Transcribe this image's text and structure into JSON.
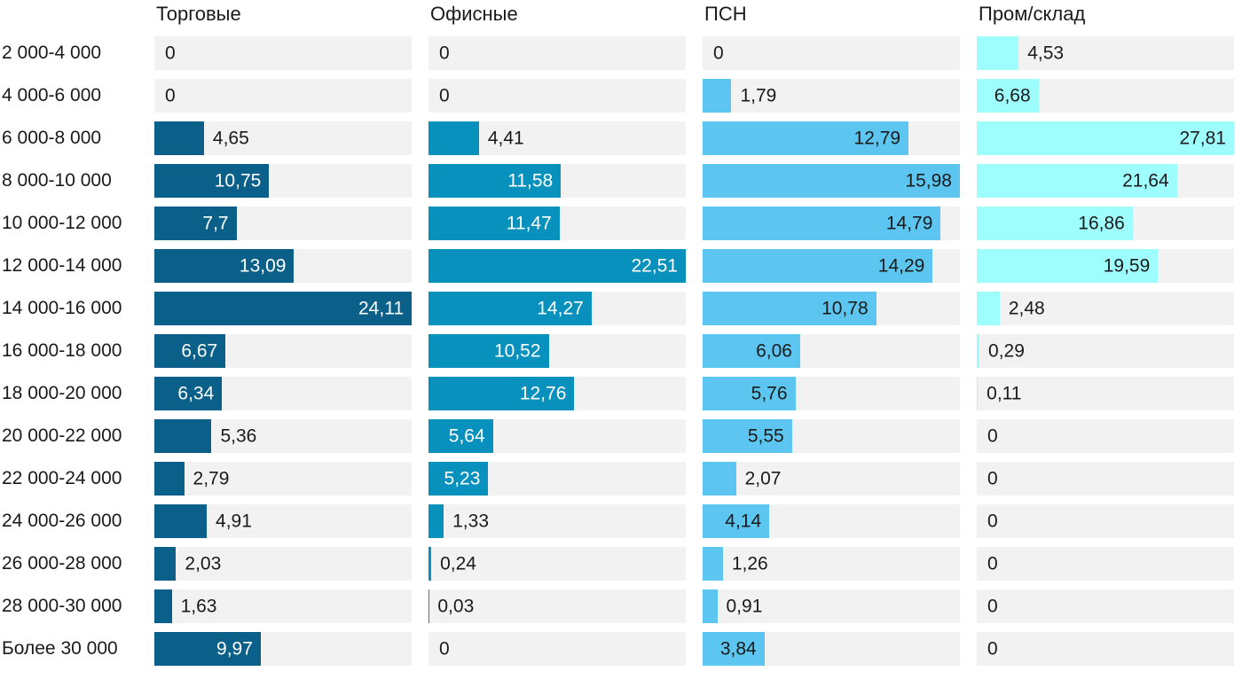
{
  "chart_data": {
    "type": "bar",
    "orientation": "horizontal",
    "title": "",
    "xlabel": "",
    "ylabel": "",
    "scaling": "per-series-max",
    "grid": false,
    "legend_position": "column-headers-top",
    "decimal_separator": ",",
    "categories": [
      "2 000-4 000",
      "4 000-6 000",
      "6 000-8 000",
      "8 000-10 000",
      "10 000-12 000",
      "12 000-14 000",
      "14 000-16 000",
      "16 000-18 000",
      "18 000-20 000",
      "20 000-22 000",
      "22 000-24 000",
      "24 000-26 000",
      "26 000-28 000",
      "28 000-30 000",
      "Более 30 000"
    ],
    "series": [
      {
        "name": "Торговые",
        "color": "#0b608a",
        "inside_text_color": "#ffffff",
        "values": [
          "0",
          "0",
          "4,65",
          "10,75",
          "7,7",
          "13,09",
          "24,11",
          "6,67",
          "6,34",
          "5,36",
          "2,79",
          "4,91",
          "2,03",
          "1,63",
          "9,97"
        ]
      },
      {
        "name": "Офисные",
        "color": "#0991bd",
        "inside_text_color": "#ffffff",
        "values": [
          "0",
          "0",
          "4,41",
          "11,58",
          "11,47",
          "22,51",
          "14,27",
          "10,52",
          "12,76",
          "5,64",
          "5,23",
          "1,33",
          "0,24",
          "0,03",
          "0"
        ]
      },
      {
        "name": "ПСН",
        "color": "#5cc6f0",
        "inside_text_color": "#1a1a1a",
        "values": [
          "0",
          "1,79",
          "12,79",
          "15,98",
          "14,79",
          "14,29",
          "10,78",
          "6,06",
          "5,76",
          "5,55",
          "2,07",
          "4,14",
          "1,26",
          "0,91",
          "3,84"
        ]
      },
      {
        "name": "Пром/склад",
        "color": "#9efdfd",
        "inside_text_color": "#1a1a1a",
        "values": [
          "4,53",
          "6,68",
          "27,81",
          "21,64",
          "16,86",
          "19,59",
          "2,48",
          "0,29",
          "0,11",
          "0",
          "0",
          "0",
          "0",
          "0",
          "0"
        ]
      }
    ],
    "colors": {
      "track_background": "#f2f2f2",
      "label_text": "#1a1a1a"
    }
  }
}
